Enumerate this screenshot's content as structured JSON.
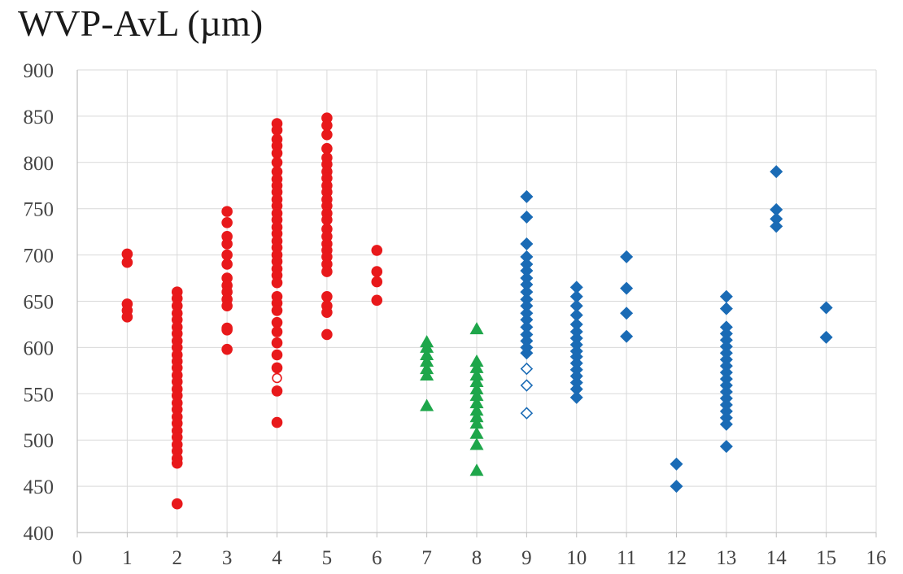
{
  "chart_data": {
    "type": "scatter",
    "title": "WVP-AvL (µm)",
    "xlabel": "",
    "ylabel": "",
    "xlim": [
      0,
      16
    ],
    "ylim": [
      400,
      900
    ],
    "x_ticks": [
      "0",
      "1",
      "2",
      "3",
      "4",
      "5",
      "6",
      "7",
      "8",
      "9",
      "10",
      "11",
      "12",
      "13",
      "14",
      "15",
      "16"
    ],
    "y_ticks": [
      "400",
      "450",
      "500",
      "550",
      "600",
      "650",
      "700",
      "750",
      "800",
      "850",
      "900"
    ],
    "grid": true,
    "legend": "none",
    "series": [
      {
        "marker": "circle",
        "color": "#e8191b",
        "filled": true,
        "points": [
          [
            1,
            701
          ],
          [
            1,
            692
          ],
          [
            1,
            647
          ],
          [
            1,
            640
          ],
          [
            1,
            633
          ],
          [
            2,
            660
          ],
          [
            2,
            653
          ],
          [
            2,
            645
          ],
          [
            2,
            637
          ],
          [
            2,
            630
          ],
          [
            2,
            622
          ],
          [
            2,
            615
          ],
          [
            2,
            607
          ],
          [
            2,
            600
          ],
          [
            2,
            592
          ],
          [
            2,
            585
          ],
          [
            2,
            578
          ],
          [
            2,
            570
          ],
          [
            2,
            563
          ],
          [
            2,
            555
          ],
          [
            2,
            548
          ],
          [
            2,
            540
          ],
          [
            2,
            533
          ],
          [
            2,
            525
          ],
          [
            2,
            518
          ],
          [
            2,
            510
          ],
          [
            2,
            503
          ],
          [
            2,
            495
          ],
          [
            2,
            488
          ],
          [
            2,
            480
          ],
          [
            2,
            475
          ],
          [
            2,
            431
          ],
          [
            3,
            747
          ],
          [
            3,
            735
          ],
          [
            3,
            720
          ],
          [
            3,
            712
          ],
          [
            3,
            700
          ],
          [
            3,
            690
          ],
          [
            3,
            675
          ],
          [
            3,
            667
          ],
          [
            3,
            660
          ],
          [
            3,
            652
          ],
          [
            3,
            645
          ],
          [
            3,
            621
          ],
          [
            3,
            619
          ],
          [
            3,
            598
          ],
          [
            4,
            842
          ],
          [
            4,
            835
          ],
          [
            4,
            825
          ],
          [
            4,
            818
          ],
          [
            4,
            810
          ],
          [
            4,
            800
          ],
          [
            4,
            790
          ],
          [
            4,
            782
          ],
          [
            4,
            775
          ],
          [
            4,
            768
          ],
          [
            4,
            760
          ],
          [
            4,
            753
          ],
          [
            4,
            745
          ],
          [
            4,
            738
          ],
          [
            4,
            730
          ],
          [
            4,
            723
          ],
          [
            4,
            715
          ],
          [
            4,
            708
          ],
          [
            4,
            700
          ],
          [
            4,
            693
          ],
          [
            4,
            685
          ],
          [
            4,
            678
          ],
          [
            4,
            670
          ],
          [
            4,
            655
          ],
          [
            4,
            648
          ],
          [
            4,
            640
          ],
          [
            4,
            627
          ],
          [
            4,
            617
          ],
          [
            4,
            605
          ],
          [
            4,
            592
          ],
          [
            4,
            578
          ],
          [
            4,
            553
          ],
          [
            4,
            519
          ],
          [
            5,
            848
          ],
          [
            5,
            840
          ],
          [
            5,
            830
          ],
          [
            5,
            815
          ],
          [
            5,
            805
          ],
          [
            5,
            798
          ],
          [
            5,
            790
          ],
          [
            5,
            783
          ],
          [
            5,
            775
          ],
          [
            5,
            768
          ],
          [
            5,
            760
          ],
          [
            5,
            753
          ],
          [
            5,
            745
          ],
          [
            5,
            738
          ],
          [
            5,
            728
          ],
          [
            5,
            720
          ],
          [
            5,
            712
          ],
          [
            5,
            705
          ],
          [
            5,
            698
          ],
          [
            5,
            690
          ],
          [
            5,
            682
          ],
          [
            5,
            655
          ],
          [
            5,
            645
          ],
          [
            5,
            638
          ],
          [
            5,
            614
          ],
          [
            6,
            705
          ],
          [
            6,
            682
          ],
          [
            6,
            671
          ],
          [
            6,
            651
          ]
        ]
      },
      {
        "marker": "circle",
        "color": "#e8191b",
        "filled": false,
        "points": [
          [
            4,
            567
          ]
        ]
      },
      {
        "marker": "triangle",
        "color": "#1ea64a",
        "filled": true,
        "points": [
          [
            7,
            606
          ],
          [
            7,
            600
          ],
          [
            7,
            592
          ],
          [
            7,
            585
          ],
          [
            7,
            577
          ],
          [
            7,
            570
          ],
          [
            7,
            537
          ],
          [
            8,
            620
          ],
          [
            8,
            585
          ],
          [
            8,
            578
          ],
          [
            8,
            570
          ],
          [
            8,
            563
          ],
          [
            8,
            555
          ],
          [
            8,
            548
          ],
          [
            8,
            540
          ],
          [
            8,
            532
          ],
          [
            8,
            525
          ],
          [
            8,
            518
          ],
          [
            8,
            507
          ],
          [
            8,
            495
          ],
          [
            8,
            467
          ]
        ]
      },
      {
        "marker": "diamond",
        "color": "#1a6bb5",
        "filled": true,
        "points": [
          [
            9,
            763
          ],
          [
            9,
            741
          ],
          [
            9,
            712
          ],
          [
            9,
            698
          ],
          [
            9,
            690
          ],
          [
            9,
            683
          ],
          [
            9,
            675
          ],
          [
            9,
            668
          ],
          [
            9,
            660
          ],
          [
            9,
            652
          ],
          [
            9,
            645
          ],
          [
            9,
            637
          ],
          [
            9,
            630
          ],
          [
            9,
            622
          ],
          [
            9,
            614
          ],
          [
            9,
            607
          ],
          [
            9,
            600
          ],
          [
            9,
            594
          ],
          [
            10,
            665
          ],
          [
            10,
            655
          ],
          [
            10,
            645
          ],
          [
            10,
            635
          ],
          [
            10,
            625
          ],
          [
            10,
            617
          ],
          [
            10,
            610
          ],
          [
            10,
            603
          ],
          [
            10,
            596
          ],
          [
            10,
            590
          ],
          [
            10,
            583
          ],
          [
            10,
            576
          ],
          [
            10,
            569
          ],
          [
            10,
            562
          ],
          [
            10,
            555
          ],
          [
            10,
            546
          ],
          [
            11,
            698
          ],
          [
            11,
            664
          ],
          [
            11,
            637
          ],
          [
            11,
            612
          ],
          [
            12,
            474
          ],
          [
            12,
            450
          ],
          [
            13,
            655
          ],
          [
            13,
            642
          ],
          [
            13,
            622
          ],
          [
            13,
            615
          ],
          [
            13,
            608
          ],
          [
            13,
            601
          ],
          [
            13,
            594
          ],
          [
            13,
            587
          ],
          [
            13,
            580
          ],
          [
            13,
            573
          ],
          [
            13,
            566
          ],
          [
            13,
            559
          ],
          [
            13,
            552
          ],
          [
            13,
            545
          ],
          [
            13,
            538
          ],
          [
            13,
            531
          ],
          [
            13,
            524
          ],
          [
            13,
            517
          ],
          [
            13,
            493
          ],
          [
            14,
            790
          ],
          [
            14,
            749
          ],
          [
            14,
            739
          ],
          [
            14,
            731
          ],
          [
            15,
            643
          ],
          [
            15,
            611
          ]
        ]
      },
      {
        "marker": "diamond",
        "color": "#1a6bb5",
        "filled": false,
        "points": [
          [
            9,
            577
          ],
          [
            9,
            559
          ],
          [
            9,
            529
          ]
        ]
      }
    ]
  }
}
